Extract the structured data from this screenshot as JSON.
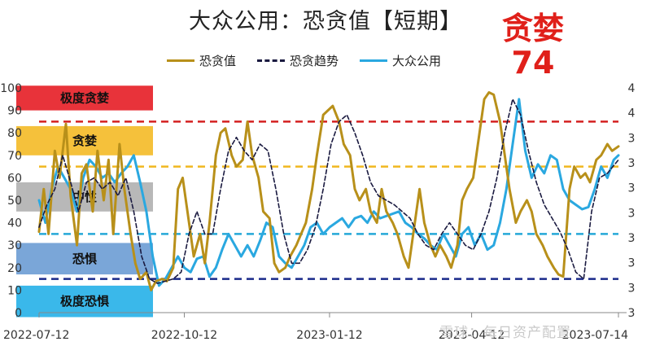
{
  "title": "大众公用：恐贪值【短期】",
  "annotation": {
    "label": "贪婪",
    "value": "74",
    "color": "#e0201a"
  },
  "watermark": "雪球：每日资产配置",
  "legend": [
    {
      "name": "恐贪值",
      "color": "#b8901a",
      "style": "solid"
    },
    {
      "name": "恐贪趋势",
      "color": "#1a1a40",
      "style": "dashed"
    },
    {
      "name": "大众公用",
      "color": "#2aa8e0",
      "style": "solid"
    }
  ],
  "zones": [
    {
      "label": "极度贪婪",
      "color": "#e8333a",
      "y_from": 90,
      "y_to": 101
    },
    {
      "label": "贪婪",
      "color": "#f5c13b",
      "y_from": 70,
      "y_to": 83
    },
    {
      "label": "中性",
      "color": "#b8b8b8",
      "y_from": 45,
      "y_to": 58
    },
    {
      "label": "恐惧",
      "color": "#7aa6d8",
      "y_from": 17,
      "y_to": 31
    },
    {
      "label": "极度恐惧",
      "color": "#3ab8ea",
      "y_from": -2,
      "y_to": 12
    }
  ],
  "chart_data": {
    "type": "line",
    "x_tick_labels": [
      "2022-07-12",
      "2022-10-12",
      "2023-01-12",
      "2023-04-12",
      "2023-07-14"
    ],
    "x_tick_positions": [
      0,
      92,
      184,
      274,
      367
    ],
    "x_range": [
      0,
      367
    ],
    "y_left": {
      "ylim": [
        0,
        100
      ],
      "ticks": [
        0,
        10,
        20,
        30,
        40,
        50,
        60,
        70,
        80,
        90,
        100
      ]
    },
    "y_right": {
      "tick_labels": [
        "4",
        "4",
        "3",
        "3",
        "3",
        "3",
        "3",
        "3",
        "3",
        "3"
      ]
    },
    "reference_lines": [
      {
        "y": 85,
        "color": "#d42020"
      },
      {
        "y": 65,
        "color": "#f0b820"
      },
      {
        "y": 35,
        "color": "#25a8d8"
      },
      {
        "y": 15,
        "color": "#1a2a8a"
      }
    ],
    "series": [
      {
        "name": "恐贪值",
        "x": [
          0,
          3,
          6,
          10,
          13,
          17,
          20,
          24,
          27,
          30,
          34,
          37,
          41,
          44,
          47,
          51,
          54,
          58,
          61,
          64,
          68,
          71,
          74,
          78,
          81,
          85,
          88,
          91,
          95,
          98,
          102,
          105,
          108,
          112,
          115,
          118,
          122,
          125,
          129,
          132,
          135,
          139,
          142,
          146,
          149,
          152,
          156,
          159,
          163,
          166,
          169,
          173,
          176,
          180,
          183,
          186,
          190,
          193,
          197,
          200,
          203,
          207,
          210,
          214,
          217,
          220,
          224,
          227,
          231,
          234,
          237,
          241,
          244,
          248,
          251,
          254,
          258,
          261,
          265,
          268,
          271,
          275,
          278,
          282,
          285,
          288,
          292,
          295,
          298,
          302,
          305,
          309,
          312,
          315,
          319,
          322,
          326,
          329,
          332,
          336,
          339,
          343,
          346,
          349,
          353,
          356,
          360,
          363,
          367
        ],
        "values": [
          36,
          55,
          35,
          72,
          60,
          84,
          52,
          30,
          62,
          66,
          45,
          72,
          50,
          68,
          35,
          75,
          55,
          35,
          22,
          15,
          18,
          10,
          14,
          15,
          14,
          20,
          55,
          60,
          40,
          25,
          35,
          22,
          40,
          70,
          80,
          82,
          70,
          65,
          68,
          85,
          70,
          60,
          45,
          42,
          22,
          18,
          20,
          25,
          30,
          35,
          40,
          55,
          70,
          88,
          90,
          92,
          85,
          75,
          70,
          55,
          50,
          55,
          45,
          40,
          55,
          45,
          40,
          35,
          25,
          20,
          35,
          55,
          40,
          30,
          25,
          30,
          25,
          20,
          30,
          50,
          55,
          60,
          75,
          95,
          98,
          97,
          85,
          70,
          55,
          40,
          45,
          50,
          45,
          35,
          30,
          25,
          20,
          17,
          16,
          55,
          65,
          60,
          62,
          58,
          68,
          70,
          75,
          72,
          74
        ]
      },
      {
        "name": "恐贪趋势",
        "x": [
          0,
          5,
          10,
          15,
          20,
          25,
          30,
          35,
          40,
          45,
          50,
          55,
          60,
          65,
          70,
          75,
          80,
          85,
          90,
          95,
          100,
          105,
          110,
          115,
          120,
          125,
          130,
          135,
          140,
          145,
          150,
          155,
          160,
          165,
          170,
          175,
          180,
          185,
          190,
          195,
          200,
          205,
          210,
          215,
          220,
          225,
          230,
          235,
          240,
          245,
          250,
          255,
          260,
          265,
          270,
          275,
          280,
          285,
          290,
          295,
          300,
          305,
          310,
          315,
          320,
          325,
          330,
          335,
          340,
          345,
          350,
          355,
          360,
          367
        ],
        "values": [
          38,
          48,
          55,
          70,
          58,
          45,
          58,
          60,
          55,
          58,
          52,
          60,
          45,
          25,
          15,
          13,
          14,
          15,
          18,
          35,
          45,
          35,
          35,
          55,
          72,
          78,
          72,
          68,
          75,
          72,
          55,
          35,
          22,
          22,
          28,
          38,
          55,
          75,
          85,
          88,
          80,
          70,
          58,
          52,
          50,
          48,
          45,
          42,
          35,
          30,
          28,
          35,
          40,
          35,
          30,
          28,
          35,
          45,
          60,
          80,
          95,
          88,
          72,
          58,
          48,
          42,
          36,
          28,
          18,
          15,
          45,
          60,
          62,
          68
        ]
      },
      {
        "name": "大众公用",
        "x": [
          0,
          4,
          8,
          12,
          16,
          20,
          24,
          28,
          32,
          36,
          40,
          44,
          48,
          52,
          56,
          60,
          64,
          68,
          72,
          76,
          80,
          84,
          88,
          92,
          96,
          100,
          104,
          108,
          112,
          116,
          120,
          124,
          128,
          132,
          136,
          140,
          144,
          148,
          152,
          156,
          160,
          164,
          168,
          172,
          176,
          180,
          184,
          188,
          192,
          196,
          200,
          204,
          208,
          212,
          216,
          220,
          224,
          228,
          232,
          236,
          240,
          244,
          248,
          252,
          256,
          260,
          264,
          268,
          272,
          276,
          280,
          284,
          288,
          292,
          296,
          300,
          304,
          308,
          312,
          316,
          320,
          324,
          328,
          332,
          336,
          340,
          344,
          348,
          352,
          356,
          360,
          364,
          367
        ],
        "values": [
          50,
          40,
          55,
          65,
          60,
          55,
          45,
          60,
          68,
          65,
          60,
          62,
          58,
          62,
          65,
          70,
          58,
          45,
          25,
          12,
          15,
          20,
          25,
          20,
          18,
          24,
          25,
          16,
          20,
          28,
          35,
          30,
          25,
          30,
          25,
          32,
          40,
          38,
          25,
          22,
          20,
          25,
          30,
          38,
          40,
          35,
          38,
          40,
          42,
          38,
          42,
          43,
          40,
          45,
          42,
          43,
          44,
          45,
          40,
          38,
          35,
          33,
          30,
          28,
          35,
          30,
          25,
          35,
          38,
          30,
          35,
          28,
          30,
          40,
          55,
          75,
          95,
          72,
          60,
          66,
          62,
          70,
          68,
          55,
          50,
          48,
          46,
          47,
          55,
          65,
          60,
          68,
          70
        ]
      }
    ]
  }
}
